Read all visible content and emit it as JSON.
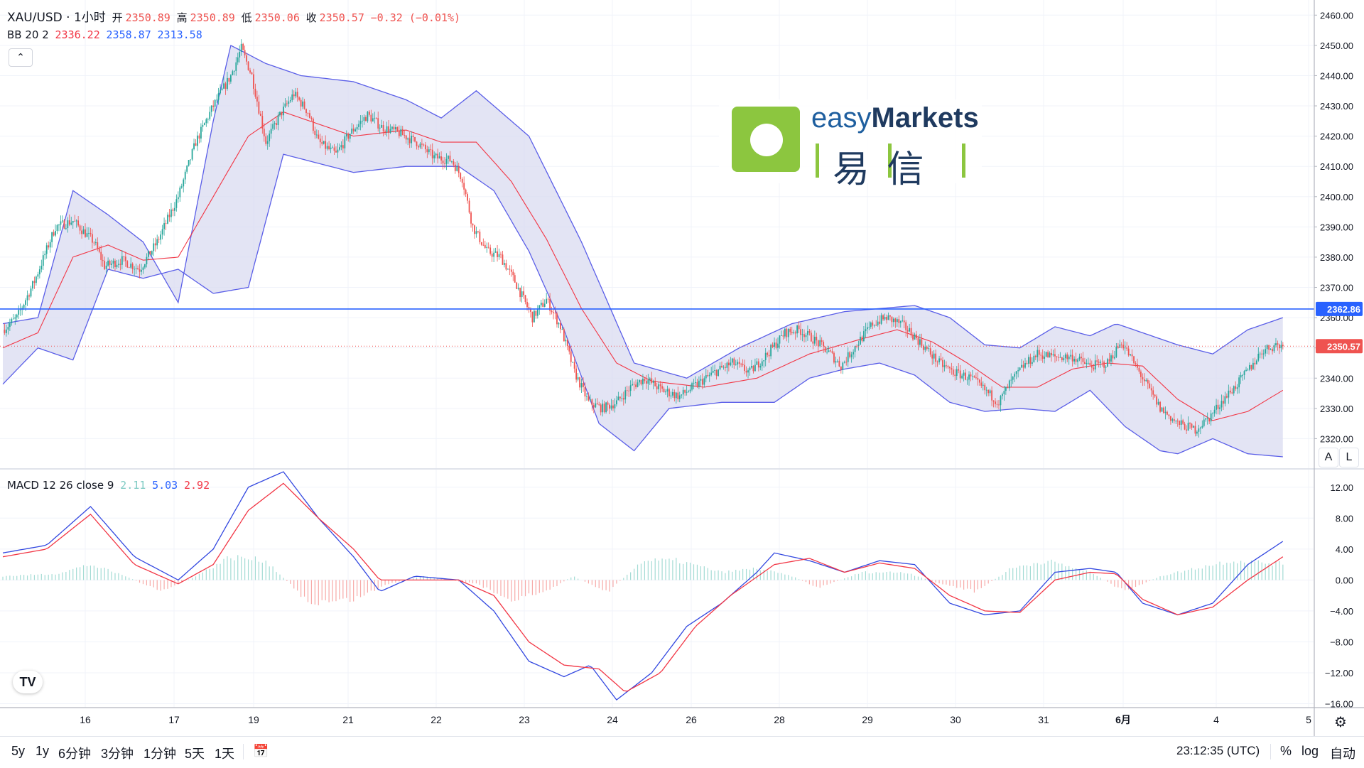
{
  "header": {
    "symbol": "XAU/USD · 1小时",
    "open_label": "开",
    "open_value": "2350.89",
    "high_label": "高",
    "high_value": "2350.89",
    "low_label": "低",
    "low_value": "2350.06",
    "close_label": "收",
    "close_value": "2350.57",
    "change": "−0.32 (−0.01%)"
  },
  "bb_legend": {
    "label": "BB 20 2",
    "basis": "2336.22",
    "upper": "2358.87",
    "lower": "2313.58"
  },
  "macd_legend": {
    "label": "MACD 12 26 close 9",
    "hist": "2.11",
    "macd": "5.03",
    "signal": "2.92"
  },
  "scale_buttons": {
    "auto": "A",
    "log": "L"
  },
  "watermark": {
    "en_prefix": "easy",
    "en_suffix": "Markets",
    "cn": "易 信"
  },
  "tv_logo": "TV",
  "bottom_bar": {
    "ranges": [
      "5y",
      "1y",
      "6分钟",
      "3分钟",
      "1分钟",
      "5天",
      "1天"
    ],
    "goto_icon": "calendar-range-icon",
    "time": "23:12:35 (UTC)",
    "percent": "%",
    "log": "log",
    "auto": "自动"
  },
  "colors": {
    "up": "#26a69a",
    "down": "#ef5350",
    "bb_band": "#5a5ee8",
    "bb_basis": "#f23645",
    "bb_fill": "#d9dbf0",
    "macd_line": "#3348e0",
    "signal_line": "#f23645",
    "hist_pos": "#a3dbd4",
    "hist_neg": "#f7a9a7",
    "hline": "#2962ff",
    "last_price": "#ef5350"
  },
  "chart_data": [
    {
      "type": "candlestick",
      "title": "XAU/USD · 1小时",
      "x_tick_labels": [
        "16",
        "17",
        "19",
        "21",
        "22",
        "23",
        "24",
        "26",
        "28",
        "29",
        "30",
        "31",
        "6月",
        "4",
        "5"
      ],
      "y_tick_labels": [
        "2320.00",
        "2330.00",
        "2340.00",
        "2350.00",
        "2360.00",
        "2370.00",
        "2380.00",
        "2390.00",
        "2400.00",
        "2410.00",
        "2420.00",
        "2430.00",
        "2440.00",
        "2450.00",
        "2460.00"
      ],
      "ylim": [
        2310,
        2465
      ],
      "horizontal_line": {
        "value": 2362.86,
        "label": "2362.86"
      },
      "last_price": {
        "value": 2350.57,
        "label": "2350.57"
      },
      "close_path": [
        [
          0,
          2356
        ],
        [
          8,
          2360
        ],
        [
          18,
          2372
        ],
        [
          30,
          2390
        ],
        [
          40,
          2392
        ],
        [
          52,
          2385
        ],
        [
          58,
          2377
        ],
        [
          68,
          2379
        ],
        [
          78,
          2376
        ],
        [
          88,
          2385
        ],
        [
          100,
          2400
        ],
        [
          110,
          2418
        ],
        [
          120,
          2430
        ],
        [
          130,
          2440
        ],
        [
          136,
          2449
        ],
        [
          142,
          2440
        ],
        [
          150,
          2418
        ],
        [
          158,
          2427
        ],
        [
          166,
          2434
        ],
        [
          174,
          2428
        ],
        [
          180,
          2418
        ],
        [
          190,
          2414
        ],
        [
          198,
          2421
        ],
        [
          208,
          2427
        ],
        [
          216,
          2423
        ],
        [
          226,
          2421
        ],
        [
          236,
          2418
        ],
        [
          246,
          2413
        ],
        [
          256,
          2412
        ],
        [
          262,
          2406
        ],
        [
          268,
          2390
        ],
        [
          276,
          2382
        ],
        [
          284,
          2380
        ],
        [
          292,
          2372
        ],
        [
          302,
          2360
        ],
        [
          310,
          2366
        ],
        [
          318,
          2357
        ],
        [
          326,
          2342
        ],
        [
          334,
          2332
        ],
        [
          342,
          2330
        ],
        [
          350,
          2332
        ],
        [
          358,
          2337
        ],
        [
          366,
          2340
        ],
        [
          376,
          2336
        ],
        [
          386,
          2334
        ],
        [
          396,
          2338
        ],
        [
          406,
          2342
        ],
        [
          416,
          2345
        ],
        [
          426,
          2342
        ],
        [
          436,
          2348
        ],
        [
          446,
          2355
        ],
        [
          454,
          2356
        ],
        [
          462,
          2353
        ],
        [
          472,
          2348
        ],
        [
          478,
          2344
        ],
        [
          488,
          2352
        ],
        [
          496,
          2358
        ],
        [
          504,
          2360
        ],
        [
          512,
          2358
        ],
        [
          518,
          2355
        ],
        [
          526,
          2350
        ],
        [
          534,
          2345
        ],
        [
          542,
          2342
        ],
        [
          552,
          2340
        ],
        [
          560,
          2336
        ],
        [
          568,
          2332
        ],
        [
          574,
          2338
        ],
        [
          582,
          2344
        ],
        [
          590,
          2348
        ],
        [
          600,
          2347
        ],
        [
          610,
          2347
        ],
        [
          620,
          2344
        ],
        [
          630,
          2345
        ],
        [
          638,
          2352
        ],
        [
          644,
          2346
        ],
        [
          652,
          2338
        ],
        [
          660,
          2330
        ],
        [
          670,
          2325
        ],
        [
          680,
          2323
        ],
        [
          688,
          2327
        ],
        [
          696,
          2333
        ],
        [
          704,
          2338
        ],
        [
          712,
          2344
        ],
        [
          718,
          2349
        ],
        [
          726,
          2351
        ],
        [
          730,
          2350.57
        ]
      ],
      "bb_upper_path": [
        [
          0,
          2358
        ],
        [
          20,
          2360
        ],
        [
          40,
          2402
        ],
        [
          60,
          2394
        ],
        [
          80,
          2385
        ],
        [
          100,
          2365
        ],
        [
          120,
          2425
        ],
        [
          130,
          2450
        ],
        [
          150,
          2444
        ],
        [
          170,
          2440
        ],
        [
          200,
          2438
        ],
        [
          230,
          2432
        ],
        [
          250,
          2426
        ],
        [
          270,
          2435
        ],
        [
          300,
          2420
        ],
        [
          330,
          2385
        ],
        [
          360,
          2345
        ],
        [
          390,
          2340
        ],
        [
          420,
          2350
        ],
        [
          450,
          2358
        ],
        [
          480,
          2362
        ],
        [
          520,
          2364
        ],
        [
          540,
          2360
        ],
        [
          560,
          2351
        ],
        [
          580,
          2350
        ],
        [
          600,
          2357
        ],
        [
          620,
          2354
        ],
        [
          635,
          2358
        ],
        [
          650,
          2355
        ],
        [
          670,
          2351
        ],
        [
          690,
          2348
        ],
        [
          710,
          2356
        ],
        [
          730,
          2360
        ]
      ],
      "bb_lower_path": [
        [
          0,
          2338
        ],
        [
          20,
          2350
        ],
        [
          40,
          2346
        ],
        [
          60,
          2376
        ],
        [
          80,
          2373
        ],
        [
          100,
          2376
        ],
        [
          120,
          2368
        ],
        [
          140,
          2370
        ],
        [
          160,
          2414
        ],
        [
          200,
          2408
        ],
        [
          230,
          2410
        ],
        [
          260,
          2410
        ],
        [
          280,
          2402
        ],
        [
          300,
          2382
        ],
        [
          320,
          2356
        ],
        [
          340,
          2325
        ],
        [
          360,
          2316
        ],
        [
          380,
          2330
        ],
        [
          410,
          2332
        ],
        [
          440,
          2332
        ],
        [
          460,
          2340
        ],
        [
          480,
          2343
        ],
        [
          500,
          2345
        ],
        [
          520,
          2341
        ],
        [
          540,
          2332
        ],
        [
          560,
          2329
        ],
        [
          580,
          2330
        ],
        [
          600,
          2329
        ],
        [
          620,
          2336
        ],
        [
          640,
          2324
        ],
        [
          660,
          2316
        ],
        [
          670,
          2315
        ],
        [
          690,
          2320
        ],
        [
          710,
          2315
        ],
        [
          730,
          2314
        ]
      ],
      "bb_basis_path": [
        [
          0,
          2350
        ],
        [
          20,
          2355
        ],
        [
          40,
          2380
        ],
        [
          60,
          2384
        ],
        [
          80,
          2379
        ],
        [
          100,
          2380
        ],
        [
          120,
          2400
        ],
        [
          140,
          2420
        ],
        [
          160,
          2428
        ],
        [
          180,
          2424
        ],
        [
          200,
          2420
        ],
        [
          230,
          2422
        ],
        [
          250,
          2418
        ],
        [
          270,
          2418
        ],
        [
          290,
          2405
        ],
        [
          310,
          2386
        ],
        [
          330,
          2363
        ],
        [
          350,
          2345
        ],
        [
          370,
          2339
        ],
        [
          400,
          2337
        ],
        [
          430,
          2340
        ],
        [
          460,
          2348
        ],
        [
          490,
          2353
        ],
        [
          510,
          2356
        ],
        [
          530,
          2352
        ],
        [
          550,
          2345
        ],
        [
          570,
          2337
        ],
        [
          590,
          2337
        ],
        [
          610,
          2343
        ],
        [
          630,
          2345
        ],
        [
          650,
          2344
        ],
        [
          670,
          2333
        ],
        [
          690,
          2326
        ],
        [
          710,
          2329
        ],
        [
          730,
          2336
        ]
      ]
    },
    {
      "type": "line",
      "title": "MACD 12 26 close 9",
      "y_tick_labels": [
        "−16.00",
        "−12.00",
        "−8.00",
        "−4.00",
        "0.00",
        "4.00",
        "8.00",
        "12.00"
      ],
      "ylim": [
        -16.5,
        14
      ],
      "series": [
        {
          "name": "MACD",
          "values": [
            [
              0,
              3.5
            ],
            [
              25,
              4.5
            ],
            [
              50,
              9.5
            ],
            [
              75,
              3
            ],
            [
              100,
              0
            ],
            [
              120,
              4
            ],
            [
              140,
              12
            ],
            [
              160,
              14
            ],
            [
              180,
              8
            ],
            [
              200,
              3
            ],
            [
              215,
              -1.5
            ],
            [
              235,
              0.5
            ],
            [
              260,
              0
            ],
            [
              280,
              -4
            ],
            [
              300,
              -10.5
            ],
            [
              320,
              -12.5
            ],
            [
              335,
              -11
            ],
            [
              350,
              -15.5
            ],
            [
              370,
              -12
            ],
            [
              390,
              -6
            ],
            [
              410,
              -3
            ],
            [
              430,
              1
            ],
            [
              440,
              3.5
            ],
            [
              460,
              2.5
            ],
            [
              480,
              1
            ],
            [
              500,
              2.5
            ],
            [
              520,
              2
            ],
            [
              540,
              -3
            ],
            [
              560,
              -4.5
            ],
            [
              580,
              -4
            ],
            [
              600,
              1
            ],
            [
              620,
              1.5
            ],
            [
              635,
              1
            ],
            [
              650,
              -3
            ],
            [
              670,
              -4.5
            ],
            [
              690,
              -3
            ],
            [
              710,
              2
            ],
            [
              730,
              5
            ]
          ]
        },
        {
          "name": "Signal",
          "values": [
            [
              0,
              3
            ],
            [
              25,
              4
            ],
            [
              50,
              8.5
            ],
            [
              75,
              2
            ],
            [
              100,
              -0.5
            ],
            [
              120,
              2
            ],
            [
              140,
              9
            ],
            [
              160,
              12.5
            ],
            [
              180,
              8
            ],
            [
              200,
              4
            ],
            [
              215,
              0
            ],
            [
              235,
              0
            ],
            [
              260,
              0
            ],
            [
              280,
              -2
            ],
            [
              300,
              -8
            ],
            [
              320,
              -11
            ],
            [
              340,
              -11.5
            ],
            [
              355,
              -14.5
            ],
            [
              375,
              -12
            ],
            [
              395,
              -6
            ],
            [
              415,
              -2
            ],
            [
              440,
              2
            ],
            [
              460,
              2.8
            ],
            [
              480,
              1
            ],
            [
              500,
              2.2
            ],
            [
              520,
              1.5
            ],
            [
              540,
              -2
            ],
            [
              560,
              -4
            ],
            [
              580,
              -4.2
            ],
            [
              600,
              0
            ],
            [
              620,
              1
            ],
            [
              635,
              0.8
            ],
            [
              650,
              -2.5
            ],
            [
              670,
              -4.5
            ],
            [
              690,
              -3.5
            ],
            [
              710,
              0
            ],
            [
              730,
              3
            ]
          ]
        }
      ],
      "histogram_path": [
        [
          0,
          0.5
        ],
        [
          30,
          0.8
        ],
        [
          50,
          2
        ],
        [
          70,
          0.5
        ],
        [
          90,
          -1.5
        ],
        [
          110,
          0.5
        ],
        [
          130,
          3
        ],
        [
          150,
          2.5
        ],
        [
          175,
          -3
        ],
        [
          200,
          -2.5
        ],
        [
          220,
          -0.5
        ],
        [
          240,
          0.5
        ],
        [
          270,
          -0.5
        ],
        [
          290,
          -2.5
        ],
        [
          310,
          -1.5
        ],
        [
          325,
          0.5
        ],
        [
          345,
          -1.5
        ],
        [
          365,
          2.5
        ],
        [
          385,
          2.5
        ],
        [
          410,
          1
        ],
        [
          430,
          1.5
        ],
        [
          450,
          0.5
        ],
        [
          465,
          -1
        ],
        [
          490,
          1
        ],
        [
          515,
          1
        ],
        [
          535,
          -0.5
        ],
        [
          555,
          -1.5
        ],
        [
          575,
          1.5
        ],
        [
          595,
          2.5
        ],
        [
          620,
          1
        ],
        [
          640,
          -1.5
        ],
        [
          660,
          0.5
        ],
        [
          680,
          1.5
        ],
        [
          700,
          2.5
        ],
        [
          730,
          2.1
        ]
      ]
    }
  ]
}
